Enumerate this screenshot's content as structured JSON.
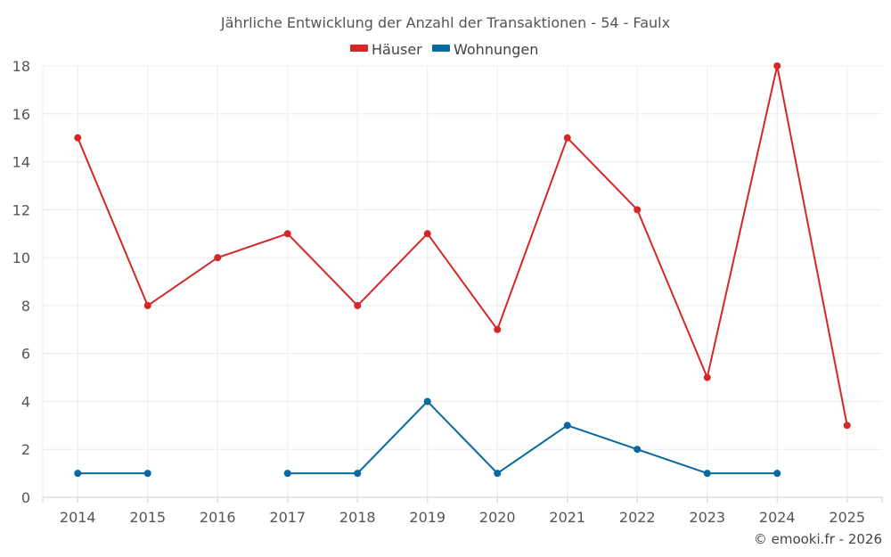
{
  "chart_data": {
    "type": "line",
    "title": "Jährliche Entwicklung der Anzahl der Transaktionen - 54 - Faulx",
    "categories": [
      "2014",
      "2015",
      "2016",
      "2017",
      "2018",
      "2019",
      "2020",
      "2021",
      "2022",
      "2023",
      "2024",
      "2025"
    ],
    "ylim": [
      0,
      18
    ],
    "yticks": [
      "0",
      "2",
      "4",
      "6",
      "8",
      "10",
      "12",
      "14",
      "16",
      "18"
    ],
    "grid": true,
    "legend_position": "top-center",
    "series": [
      {
        "name": "Häuser",
        "color": "#d62728",
        "values": [
          15,
          8,
          10,
          11,
          8,
          11,
          7,
          15,
          12,
          5,
          18,
          3
        ]
      },
      {
        "name": "Wohnungen",
        "color": "#0868a0",
        "values": [
          1,
          1,
          null,
          1,
          1,
          4,
          1,
          3,
          2,
          1,
          1,
          null
        ]
      }
    ]
  },
  "credit": "© emooki.fr - 2026"
}
